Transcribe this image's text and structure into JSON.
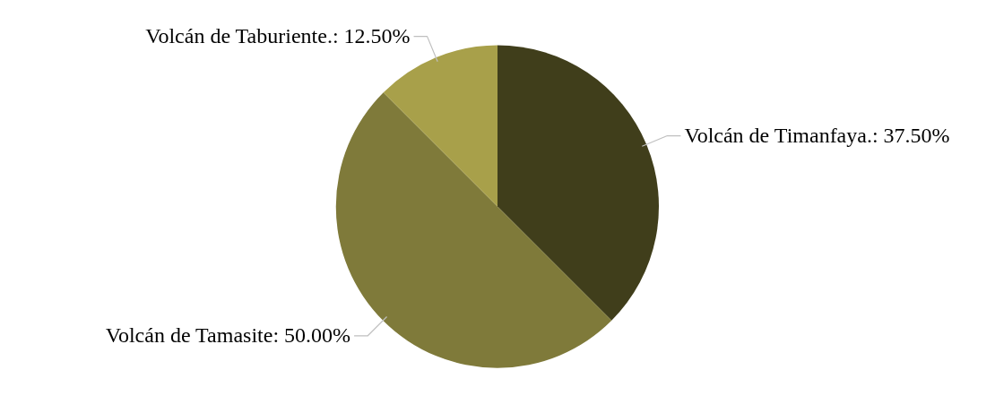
{
  "chart_data": {
    "type": "pie",
    "categories": [
      "Volcán de Timanfaya.",
      "Volcán de Tamasite",
      "Volcán de Taburiente."
    ],
    "values": [
      37.5,
      50,
      12.5
    ],
    "value_labels": [
      "37.50%",
      "50.00%",
      "12.50%"
    ],
    "colors": [
      "#403e1b",
      "#7f7a3a",
      "#a8a04a"
    ]
  }
}
